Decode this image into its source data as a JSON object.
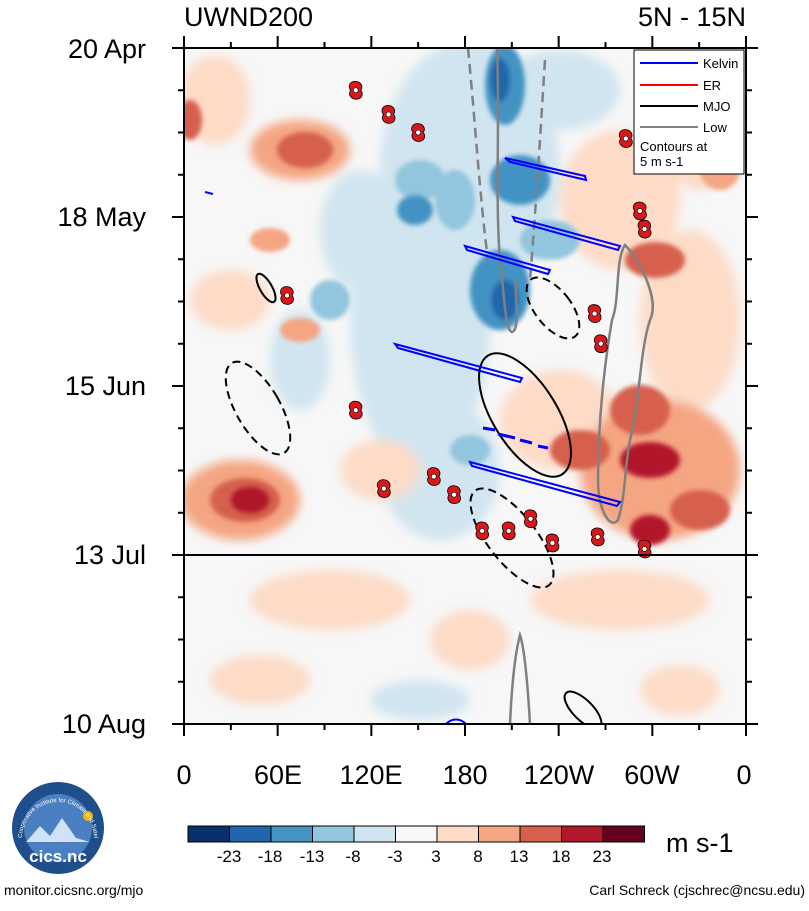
{
  "chart_data": {
    "type": "heatmap",
    "title_left": "UWND200",
    "title_right": "5N - 15N",
    "y_tick_labels": [
      "20 Apr",
      "18 May",
      "15 Jun",
      "13 Jul",
      "10 Aug"
    ],
    "x_tick_labels": [
      "0",
      "60E",
      "120E",
      "180",
      "120W",
      "60W",
      "0"
    ],
    "x_range_deg": [
      0,
      360
    ],
    "observed_until": "13 Jul",
    "colorbar": {
      "unit": "m s-1",
      "tick_labels": [
        "-23",
        "-18",
        "-13",
        "-8",
        "-3",
        "3",
        "8",
        "13",
        "18",
        "23"
      ],
      "colors": [
        "#08306b",
        "#2166ac",
        "#4393c3",
        "#92c5de",
        "#d1e5f0",
        "#f7f7f7",
        "#fddbc7",
        "#f4a582",
        "#d6604d",
        "#b2182b",
        "#67001f"
      ]
    },
    "legend": {
      "entries": [
        {
          "label": "Kelvin",
          "color": "#0000ff"
        },
        {
          "label": "ER",
          "color": "#ff0000"
        },
        {
          "label": "MJO",
          "color": "#000000"
        },
        {
          "label": "Low",
          "color": "#808080"
        }
      ],
      "note_line1": "Contours at",
      "note_line2": "5 m s-1"
    },
    "tropical_cyclones": [
      {
        "lon": 110,
        "days_from_start": 7
      },
      {
        "lon": 131,
        "days_from_start": 11
      },
      {
        "lon": 150,
        "days_from_start": 14
      },
      {
        "lon": 283,
        "days_from_start": 15
      },
      {
        "lon": 292,
        "days_from_start": 27
      },
      {
        "lon": 295,
        "days_from_start": 30
      },
      {
        "lon": 66,
        "days_from_start": 41
      },
      {
        "lon": 263,
        "days_from_start": 44
      },
      {
        "lon": 267,
        "days_from_start": 49
      },
      {
        "lon": 110,
        "days_from_start": 60
      },
      {
        "lon": 160,
        "days_from_start": 71
      },
      {
        "lon": 128,
        "days_from_start": 73
      },
      {
        "lon": 173,
        "days_from_start": 74
      },
      {
        "lon": 222,
        "days_from_start": 78
      },
      {
        "lon": 191,
        "days_from_start": 80
      },
      {
        "lon": 208,
        "days_from_start": 80
      },
      {
        "lon": 265,
        "days_from_start": 81
      },
      {
        "lon": 236,
        "days_from_start": 82
      },
      {
        "lon": 295,
        "days_from_start": 83
      }
    ]
  },
  "footer": {
    "logo_text": "cics.nc",
    "logo_ring_text": "Cooperative Institute for Climate and Satellites",
    "url": "monitor.cicsnc.org/mjo",
    "credit": "Carl Schreck (cjschrec@ncsu.edu)"
  }
}
